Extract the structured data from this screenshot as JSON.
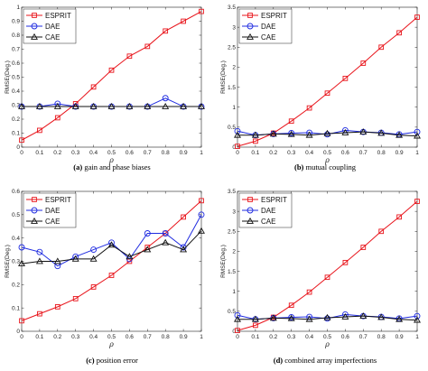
{
  "chart_data": [
    {
      "type": "line",
      "caption_label": "(a)",
      "caption_text": "gain and phase biases",
      "xlabel": "ρ",
      "ylabel": "RMSE(Deg.)",
      "x": [
        0,
        0.1,
        0.2,
        0.3,
        0.4,
        0.5,
        0.6,
        0.7,
        0.8,
        0.9,
        1
      ],
      "xticks": [
        "0",
        "0.1",
        "0.2",
        "0.3",
        "0.4",
        "0.5",
        "0.6",
        "0.7",
        "0.8",
        "0.9",
        "1"
      ],
      "xlim": [
        0,
        1
      ],
      "ylim": [
        0,
        1
      ],
      "yticks": [
        "0",
        "0.1",
        "0.2",
        "0.3",
        "0.4",
        "0.5",
        "0.6",
        "0.7",
        "0.8",
        "0.9",
        "1"
      ],
      "legend": "top-left",
      "series": [
        {
          "name": "ESPRIT",
          "color": "#e8141b",
          "marker": "square",
          "values": [
            0.05,
            0.12,
            0.21,
            0.31,
            0.43,
            0.55,
            0.65,
            0.72,
            0.83,
            0.9,
            0.97
          ]
        },
        {
          "name": "DAE",
          "color": "#1f2be0",
          "marker": "circle",
          "values": [
            0.29,
            0.29,
            0.31,
            0.29,
            0.29,
            0.29,
            0.29,
            0.29,
            0.35,
            0.29,
            0.29
          ]
        },
        {
          "name": "CAE",
          "color": "#111111",
          "marker": "triangle",
          "values": [
            0.29,
            0.29,
            0.29,
            0.29,
            0.29,
            0.29,
            0.29,
            0.29,
            0.29,
            0.29,
            0.29
          ]
        }
      ]
    },
    {
      "type": "line",
      "caption_label": "(b)",
      "caption_text": "mutual coupling",
      "xlabel": "ρ",
      "ylabel": "RMSE(Deg.)",
      "x": [
        0,
        0.1,
        0.2,
        0.3,
        0.4,
        0.5,
        0.6,
        0.7,
        0.8,
        0.9,
        1
      ],
      "xticks": [
        "0",
        "0.1",
        "0.2",
        "0.3",
        "0.4",
        "0.5",
        "0.6",
        "0.7",
        "0.8",
        "0.9",
        "1"
      ],
      "xlim": [
        0,
        1
      ],
      "ylim": [
        0,
        3.5
      ],
      "yticks": [
        "0",
        "0.5",
        "1",
        "1.5",
        "2",
        "2.5",
        "3",
        "3.5"
      ],
      "legend": "top-left",
      "series": [
        {
          "name": "ESPRIT",
          "color": "#e8141b",
          "marker": "square",
          "values": [
            0.02,
            0.15,
            0.35,
            0.65,
            0.98,
            1.35,
            1.72,
            2.1,
            2.5,
            2.86,
            3.25
          ]
        },
        {
          "name": "DAE",
          "color": "#1f2be0",
          "marker": "circle",
          "values": [
            0.4,
            0.3,
            0.33,
            0.35,
            0.36,
            0.32,
            0.42,
            0.38,
            0.36,
            0.32,
            0.38
          ]
        },
        {
          "name": "CAE",
          "color": "#111111",
          "marker": "triangle",
          "values": [
            0.3,
            0.3,
            0.33,
            0.32,
            0.3,
            0.34,
            0.36,
            0.38,
            0.35,
            0.3,
            0.28
          ]
        }
      ]
    },
    {
      "type": "line",
      "caption_label": "(c)",
      "caption_text": "position error",
      "xlabel": "ρ",
      "ylabel": "RMSE(Deg.)",
      "x": [
        0,
        0.1,
        0.2,
        0.3,
        0.4,
        0.5,
        0.6,
        0.7,
        0.8,
        0.9,
        1
      ],
      "xticks": [
        "0",
        "0.1",
        "0.2",
        "0.3",
        "0.4",
        "0.5",
        "0.6",
        "0.7",
        "0.8",
        "0.9",
        "1"
      ],
      "xlim": [
        0,
        1
      ],
      "ylim": [
        0,
        0.6
      ],
      "yticks": [
        "0",
        "0.1",
        "0.2",
        "0.3",
        "0.4",
        "0.5",
        "0.6"
      ],
      "legend": "top-left",
      "series": [
        {
          "name": "ESPRIT",
          "color": "#e8141b",
          "marker": "square",
          "values": [
            0.045,
            0.075,
            0.105,
            0.14,
            0.19,
            0.24,
            0.3,
            0.36,
            0.42,
            0.49,
            0.56
          ]
        },
        {
          "name": "DAE",
          "color": "#1f2be0",
          "marker": "circle",
          "values": [
            0.36,
            0.34,
            0.28,
            0.32,
            0.35,
            0.38,
            0.31,
            0.42,
            0.42,
            0.36,
            0.5
          ]
        },
        {
          "name": "CAE",
          "color": "#111111",
          "marker": "triangle",
          "values": [
            0.29,
            0.3,
            0.3,
            0.31,
            0.31,
            0.37,
            0.32,
            0.35,
            0.38,
            0.35,
            0.43
          ]
        }
      ]
    },
    {
      "type": "line",
      "caption_label": "(d)",
      "caption_text": "combined array imperfections",
      "xlabel": "ρ",
      "ylabel": "RMSE(Deg.)",
      "x": [
        0,
        0.1,
        0.2,
        0.3,
        0.4,
        0.5,
        0.6,
        0.7,
        0.8,
        0.9,
        1
      ],
      "xticks": [
        "0",
        "0.1",
        "0.2",
        "0.3",
        "0.4",
        "0.5",
        "0.6",
        "0.7",
        "0.8",
        "0.9",
        "1"
      ],
      "xlim": [
        0,
        1
      ],
      "ylim": [
        0,
        3.5
      ],
      "yticks": [
        "0",
        "0.5",
        "1",
        "1.5",
        "2",
        "2.5",
        "3",
        "3.5"
      ],
      "legend": "top-left",
      "series": [
        {
          "name": "ESPRIT",
          "color": "#e8141b",
          "marker": "square",
          "values": [
            0.02,
            0.15,
            0.35,
            0.65,
            0.98,
            1.35,
            1.72,
            2.1,
            2.5,
            2.86,
            3.25
          ]
        },
        {
          "name": "DAE",
          "color": "#1f2be0",
          "marker": "circle",
          "values": [
            0.4,
            0.3,
            0.33,
            0.35,
            0.36,
            0.32,
            0.42,
            0.38,
            0.36,
            0.32,
            0.38
          ]
        },
        {
          "name": "CAE",
          "color": "#111111",
          "marker": "triangle",
          "values": [
            0.3,
            0.3,
            0.33,
            0.32,
            0.3,
            0.34,
            0.36,
            0.38,
            0.35,
            0.3,
            0.28
          ]
        }
      ]
    }
  ]
}
